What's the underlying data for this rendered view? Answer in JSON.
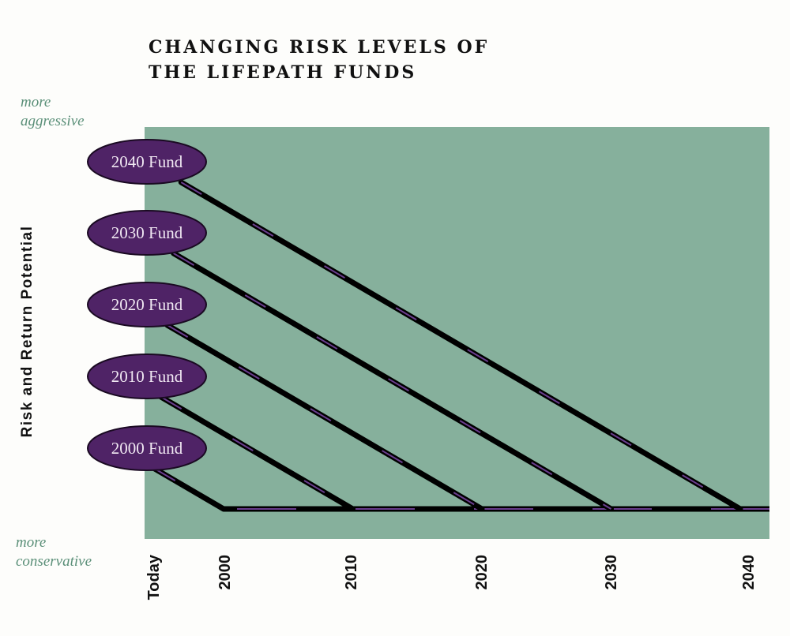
{
  "title_lines": [
    "CHANGING RISK LEVELS OF",
    "THE LIFEPATH FUNDS"
  ],
  "top_note": [
    "more",
    "aggressive"
  ],
  "bottom_note": [
    "more",
    "conservative"
  ],
  "colors": {
    "panel": "#86b09c",
    "line": "#000000",
    "line_accent": "#6a3d8e",
    "fund_oval": "#4f2366",
    "fund_text": "#f1e9f3",
    "note_text": "#5a8f78"
  },
  "chart_data": {
    "type": "line",
    "title": "CHANGING RISK LEVELS OF THE LIFEPATH FUNDS",
    "ylabel": "Risk and Return Potential",
    "xlabel": "",
    "x_tick_labels": [
      "Today",
      "2000",
      "2010",
      "2020",
      "2030",
      "2040"
    ],
    "y_axis_ends": {
      "top": "more aggressive",
      "bottom": "more conservative"
    },
    "grid": false,
    "series": [
      {
        "name": "2040 Fund",
        "target_year": 2040
      },
      {
        "name": "2030 Fund",
        "target_year": 2030
      },
      {
        "name": "2020 Fund",
        "target_year": 2020
      },
      {
        "name": "2010 Fund",
        "target_year": 2010
      },
      {
        "name": "2000 Fund",
        "target_year": 2000
      }
    ]
  }
}
